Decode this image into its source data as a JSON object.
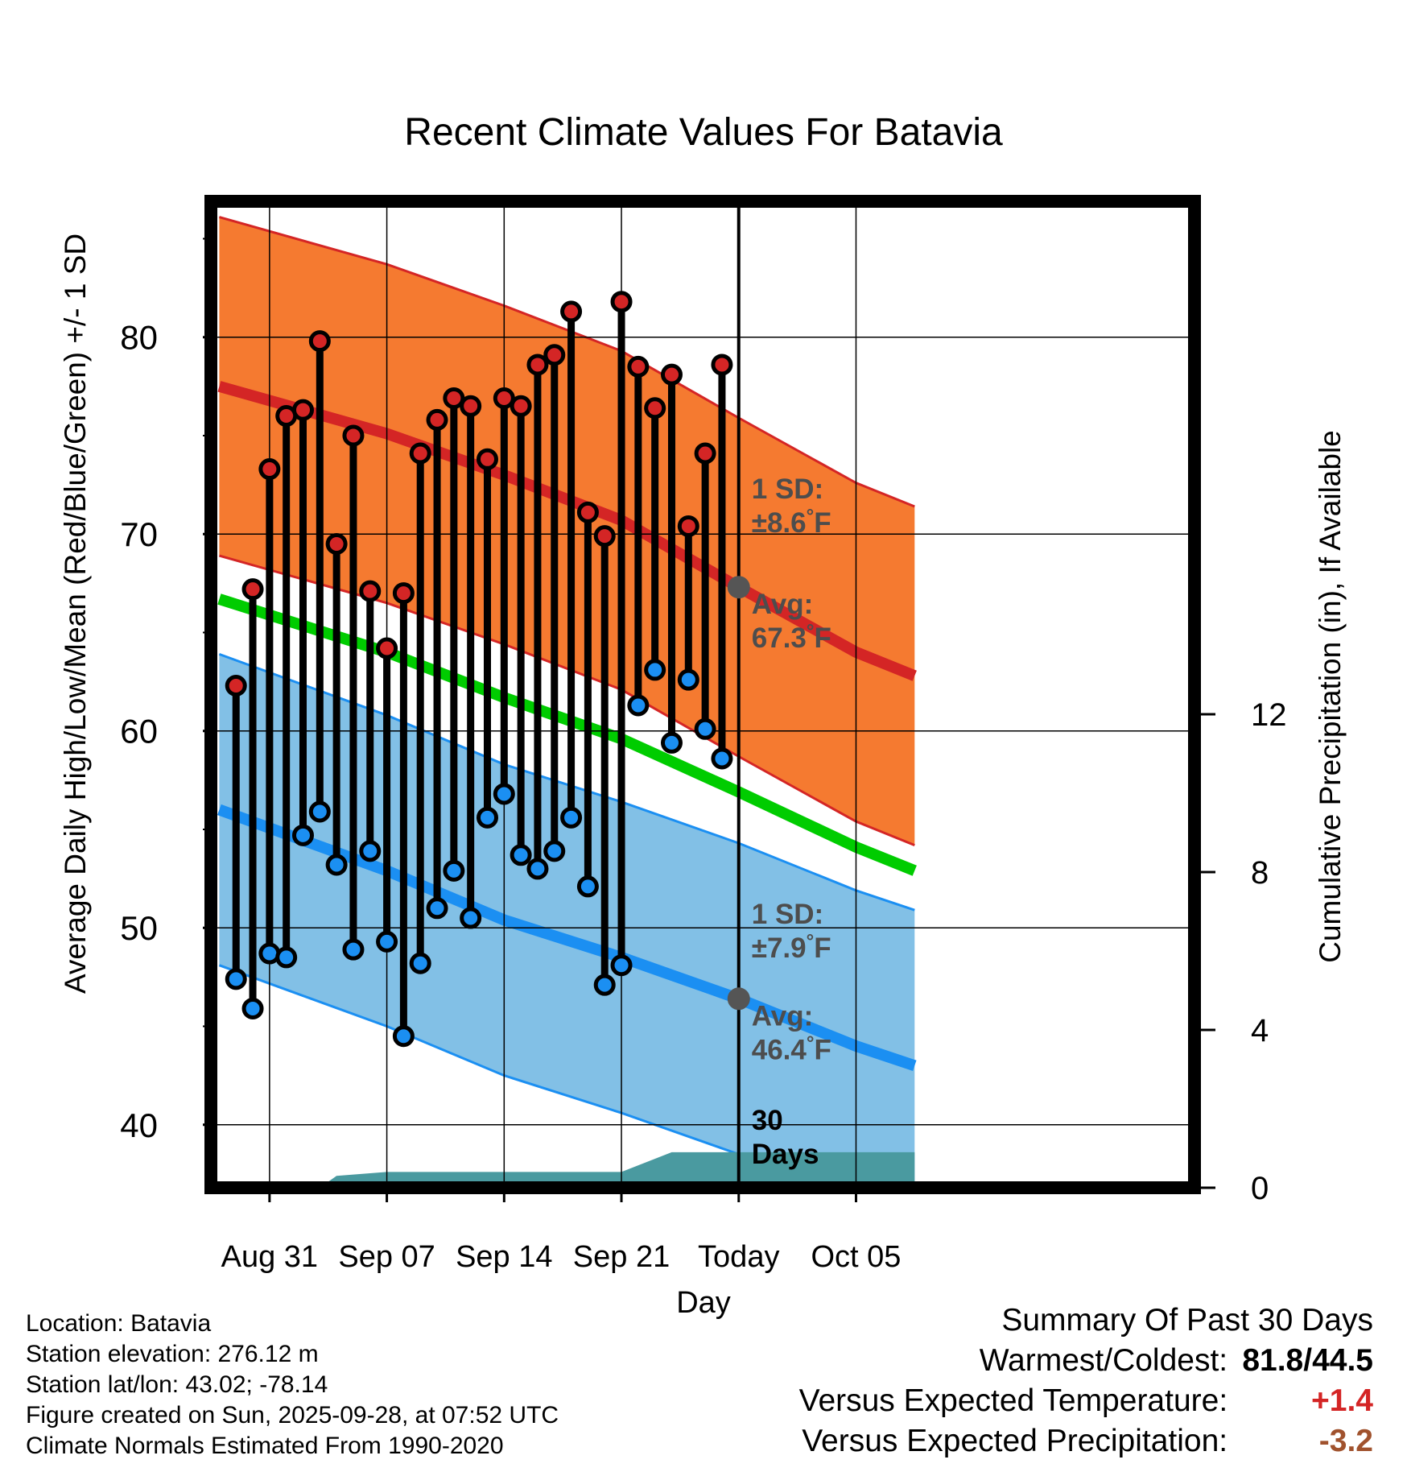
{
  "chart_data": {
    "type": "line",
    "title": "Recent Climate Values For Batavia",
    "xlabel": "Day",
    "ylabel": "Average Daily High/Low/Mean (Red/Blue/Green) +/- 1 SD",
    "ylabel_right": "Cumulative Precipitation (in), If Available",
    "x_range": [
      -3.5,
      55.2
    ],
    "ylim": [
      36.8,
      86.9
    ],
    "y_ticks": [
      40,
      50,
      60,
      70,
      80
    ],
    "y_minor_ticks": [
      45,
      55,
      65,
      75,
      85
    ],
    "precip_ylim": [
      0,
      25
    ],
    "precip_ticks": [
      0,
      4,
      8,
      12
    ],
    "x_ticks": [
      {
        "x": 0,
        "label": "Aug 31"
      },
      {
        "x": 7,
        "label": "Sep 07"
      },
      {
        "x": 14,
        "label": "Sep 14"
      },
      {
        "x": 21,
        "label": "Sep 21"
      },
      {
        "x": 28,
        "label": "Today"
      },
      {
        "x": 35,
        "label": "Oct 05"
      }
    ],
    "today_x": 28,
    "normal_high": {
      "x": [
        -3,
        7,
        14,
        21,
        28,
        35,
        38.5
      ],
      "y": [
        77.5,
        75.1,
        73.0,
        70.7,
        67.3,
        64.0,
        62.8
      ]
    },
    "normal_low": {
      "x": [
        -3,
        7,
        14,
        21,
        28,
        35,
        38.5
      ],
      "y": [
        56.0,
        52.9,
        50.4,
        48.5,
        46.4,
        44.0,
        43.0
      ]
    },
    "normal_mean": {
      "x": [
        -3,
        7,
        14,
        21,
        28,
        35,
        38.5
      ],
      "y": [
        66.7,
        64.0,
        61.7,
        59.6,
        56.9,
        54.1,
        52.9
      ]
    },
    "high_sd": 8.6,
    "low_sd": 7.9,
    "daily": {
      "x": [
        -2,
        -1,
        0,
        1,
        2,
        3,
        4,
        5,
        6,
        7,
        8,
        9,
        10,
        11,
        12,
        13,
        14,
        15,
        16,
        17,
        18,
        19,
        20,
        21,
        22,
        23,
        24,
        25,
        26,
        27
      ],
      "highs": [
        62.3,
        67.2,
        73.3,
        76.0,
        76.3,
        79.8,
        69.5,
        75.0,
        67.1,
        64.2,
        67.0,
        74.1,
        75.8,
        76.9,
        76.5,
        73.8,
        76.9,
        76.5,
        78.6,
        79.1,
        81.3,
        71.1,
        69.9,
        81.8,
        78.5,
        76.4,
        78.1,
        70.4,
        74.1,
        78.6
      ],
      "lows": [
        47.4,
        45.9,
        48.7,
        48.5,
        54.7,
        55.9,
        53.2,
        48.9,
        53.9,
        49.3,
        44.5,
        48.2,
        51.0,
        52.9,
        50.5,
        55.6,
        56.8,
        53.7,
        53.0,
        53.9,
        55.6,
        52.1,
        47.1,
        48.1,
        61.3,
        63.1,
        59.4,
        62.6,
        60.1,
        58.6
      ]
    },
    "precip": {
      "x": [
        -3,
        1,
        3,
        4,
        7,
        21,
        24,
        38.5
      ],
      "y": [
        0,
        0,
        0,
        0.3,
        0.4,
        0.4,
        0.9,
        0.9
      ]
    },
    "annotations": [
      {
        "line1": "1 SD:",
        "line2": "±8.6",
        "unit": "°F"
      },
      {
        "line1": "Avg:",
        "line2": "67.3",
        "unit": "°F"
      },
      {
        "line1": "1 SD:",
        "line2": "±7.9",
        "unit": "°F"
      },
      {
        "line1": "Avg:",
        "line2": "46.4",
        "unit": "°F"
      },
      {
        "line1": "30",
        "line2": "Days",
        "unit": ""
      }
    ],
    "colors": {
      "high": "#d42525",
      "low": "#1b8ff2",
      "mean": "#00cc00",
      "high_band": "#f57a30",
      "low_band": "#82c0e6",
      "precip": "#4a9aa0",
      "annot": "#4d4d4d"
    }
  },
  "meta": {
    "location": "Location: Batavia",
    "elevation": "Station elevation: 276.12 m",
    "latlon": "Station lat/lon: 43.02; -78.14",
    "created": "Figure created on Sun, 2025-09-28, at 07:52 UTC",
    "normals": "Climate Normals Estimated From 1990-2020"
  },
  "summary": {
    "title": "Summary Of Past 30 Days",
    "warm_label": "Warmest/Coldest:",
    "warm_value": "81.8/44.5",
    "temp_label": "Versus Expected Temperature:",
    "temp_value": "+1.4",
    "temp_color": "#d42525",
    "precip_label": "Versus Expected Precipitation:",
    "precip_value": "-3.2",
    "precip_color": "#a0522d"
  }
}
